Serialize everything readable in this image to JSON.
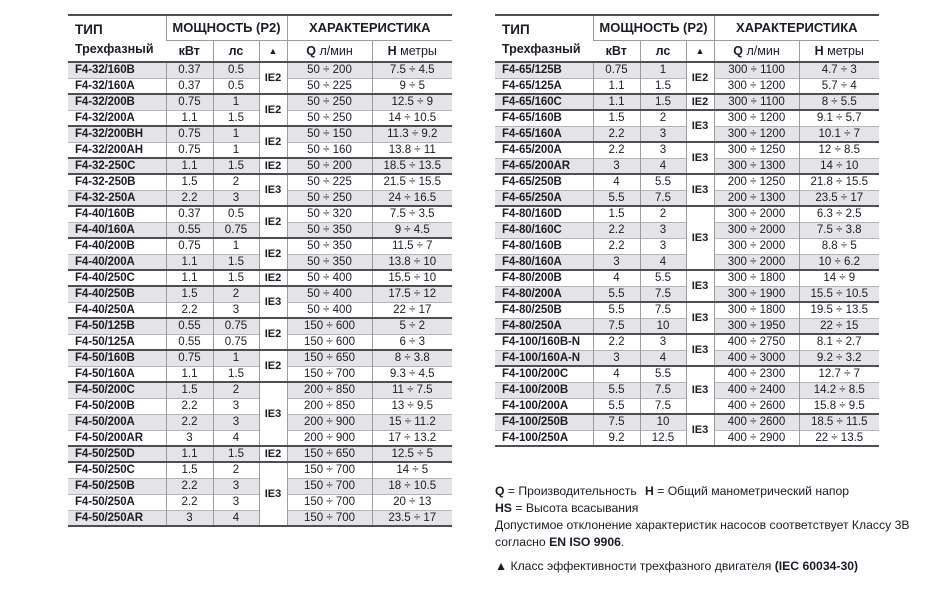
{
  "columns": {
    "type_title": "ТИП",
    "type_subtitle": "Трехфазный",
    "power_title": "МОЩНОСТЬ (P2)",
    "kw": "кВт",
    "hp": "лс",
    "efficiency_symbol": "▲",
    "characteristics_title": "ХАРАКТЕРИСТИКА",
    "q_letter": "Q",
    "q_unit": "л/мин",
    "h_letter": "H",
    "h_unit": "метры"
  },
  "tables": {
    "left": {
      "groups": [
        {
          "ie": "IE2",
          "rows": [
            {
              "model": "F4-32/160B",
              "kw": "0.37",
              "hp": "0.5",
              "q": "50 ÷ 200",
              "h": "7.5 ÷ 4.5"
            },
            {
              "model": "F4-32/160A",
              "kw": "0.37",
              "hp": "0.5",
              "q": "50 ÷ 225",
              "h": "9 ÷ 5"
            }
          ]
        },
        {
          "ie": "IE2",
          "rows": [
            {
              "model": "F4-32/200B",
              "kw": "0.75",
              "hp": "1",
              "q": "50 ÷ 250",
              "h": "12.5 ÷ 9"
            },
            {
              "model": "F4-32/200A",
              "kw": "1.1",
              "hp": "1.5",
              "q": "50 ÷ 250",
              "h": "14 ÷ 10.5"
            }
          ]
        },
        {
          "ie": "IE2",
          "rows": [
            {
              "model": "F4-32/200BH",
              "kw": "0.75",
              "hp": "1",
              "q": "50 ÷ 150",
              "h": "11.3 ÷ 9.2"
            },
            {
              "model": "F4-32/200AH",
              "kw": "0.75",
              "hp": "1",
              "q": "50 ÷ 160",
              "h": "13.8 ÷ 11"
            }
          ]
        },
        {
          "ie": "IE2",
          "rows": [
            {
              "model": "F4-32-250C",
              "kw": "1.1",
              "hp": "1.5",
              "q": "50 ÷ 200",
              "h": "18.5 ÷ 13.5"
            }
          ]
        },
        {
          "ie": "IE3",
          "rows": [
            {
              "model": "F4-32-250B",
              "kw": "1.5",
              "hp": "2",
              "q": "50 ÷ 225",
              "h": "21.5 ÷ 15.5"
            },
            {
              "model": "F4-32-250A",
              "kw": "2.2",
              "hp": "3",
              "q": "50 ÷ 250",
              "h": "24 ÷ 16.5"
            }
          ]
        },
        {
          "ie": "IE2",
          "rows": [
            {
              "model": "F4-40/160B",
              "kw": "0.37",
              "hp": "0.5",
              "q": "50 ÷ 320",
              "h": "7.5 ÷ 3.5"
            },
            {
              "model": "F4-40/160A",
              "kw": "0.55",
              "hp": "0.75",
              "q": "50 ÷ 350",
              "h": "9 ÷ 4.5"
            }
          ]
        },
        {
          "ie": "IE2",
          "rows": [
            {
              "model": "F4-40/200B",
              "kw": "0.75",
              "hp": "1",
              "q": "50 ÷ 350",
              "h": "11.5 ÷ 7"
            },
            {
              "model": "F4-40/200A",
              "kw": "1.1",
              "hp": "1.5",
              "q": "50 ÷ 350",
              "h": "13.8 ÷ 10"
            }
          ]
        },
        {
          "ie": "IE2",
          "rows": [
            {
              "model": "F4-40/250C",
              "kw": "1.1",
              "hp": "1.5",
              "q": "50 ÷ 400",
              "h": "15.5 ÷ 10"
            }
          ]
        },
        {
          "ie": "IE3",
          "rows": [
            {
              "model": "F4-40/250B",
              "kw": "1.5",
              "hp": "2",
              "q": "50 ÷ 400",
              "h": "17.5 ÷ 12"
            },
            {
              "model": "F4-40/250A",
              "kw": "2.2",
              "hp": "3",
              "q": "50 ÷ 400",
              "h": "22 ÷ 17"
            }
          ]
        },
        {
          "ie": "IE2",
          "rows": [
            {
              "model": "F4-50/125B",
              "kw": "0.55",
              "hp": "0.75",
              "q": "150 ÷ 600",
              "h": "5 ÷ 2"
            },
            {
              "model": "F4-50/125A",
              "kw": "0.55",
              "hp": "0.75",
              "q": "150 ÷ 600",
              "h": "6 ÷ 3"
            }
          ]
        },
        {
          "ie": "IE2",
          "rows": [
            {
              "model": "F4-50/160B",
              "kw": "0.75",
              "hp": "1",
              "q": "150 ÷ 650",
              "h": "8 ÷ 3.8"
            },
            {
              "model": "F4-50/160A",
              "kw": "1.1",
              "hp": "1.5",
              "q": "150 ÷ 700",
              "h": "9.3 ÷ 4.5"
            }
          ]
        },
        {
          "ie": "IE3",
          "rows": [
            {
              "model": "F4-50/200C",
              "kw": "1.5",
              "hp": "2",
              "q": "200 ÷ 850",
              "h": "11 ÷ 7.5"
            },
            {
              "model": "F4-50/200B",
              "kw": "2.2",
              "hp": "3",
              "q": "200 ÷ 850",
              "h": "13 ÷ 9.5"
            },
            {
              "model": "F4-50/200A",
              "kw": "2.2",
              "hp": "3",
              "q": "200 ÷ 900",
              "h": "15 ÷ 11.2"
            },
            {
              "model": "F4-50/200AR",
              "kw": "3",
              "hp": "4",
              "q": "200 ÷ 900",
              "h": "17 ÷ 13.2"
            }
          ]
        },
        {
          "ie": "IE2",
          "rows": [
            {
              "model": "F4-50/250D",
              "kw": "1.1",
              "hp": "1.5",
              "q": "150 ÷ 650",
              "h": "12.5 ÷ 5"
            }
          ]
        },
        {
          "ie": "IE3",
          "rows": [
            {
              "model": "F4-50/250C",
              "kw": "1.5",
              "hp": "2",
              "q": "150 ÷ 700",
              "h": "14 ÷ 5"
            },
            {
              "model": "F4-50/250B",
              "kw": "2.2",
              "hp": "3",
              "q": "150 ÷ 700",
              "h": "18 ÷ 10.5"
            },
            {
              "model": "F4-50/250A",
              "kw": "2.2",
              "hp": "3",
              "q": "150 ÷ 700",
              "h": "20 ÷ 13"
            },
            {
              "model": "F4-50/250AR",
              "kw": "3",
              "hp": "4",
              "q": "150 ÷ 700",
              "h": "23.5 ÷ 17"
            }
          ]
        }
      ]
    },
    "right": {
      "groups": [
        {
          "ie": "IE2",
          "rows": [
            {
              "model": "F4-65/125B",
              "kw": "0.75",
              "hp": "1",
              "q": "300 ÷ 1100",
              "h": "4.7 ÷ 3"
            },
            {
              "model": "F4-65/125A",
              "kw": "1.1",
              "hp": "1.5",
              "q": "300 ÷ 1200",
              "h": "5.7 ÷ 4"
            }
          ]
        },
        {
          "ie": "IE2",
          "rows": [
            {
              "model": "F4-65/160C",
              "kw": "1.1",
              "hp": "1.5",
              "q": "300 ÷ 1100",
              "h": "8 ÷ 5.5"
            }
          ]
        },
        {
          "ie": "IE3",
          "rows": [
            {
              "model": "F4-65/160B",
              "kw": "1.5",
              "hp": "2",
              "q": "300 ÷ 1200",
              "h": "9.1 ÷ 5.7"
            },
            {
              "model": "F4-65/160A",
              "kw": "2.2",
              "hp": "3",
              "q": "300 ÷ 1200",
              "h": "10.1 ÷ 7"
            }
          ]
        },
        {
          "ie": "IE3",
          "rows": [
            {
              "model": "F4-65/200A",
              "kw": "2.2",
              "hp": "3",
              "q": "300 ÷ 1250",
              "h": "12 ÷ 8.5"
            },
            {
              "model": "F4-65/200AR",
              "kw": "3",
              "hp": "4",
              "q": "300 ÷ 1300",
              "h": "14 ÷ 10"
            }
          ]
        },
        {
          "ie": "IE3",
          "rows": [
            {
              "model": "F4-65/250B",
              "kw": "4",
              "hp": "5.5",
              "q": "200 ÷ 1250",
              "h": "21.8 ÷ 15.5"
            },
            {
              "model": "F4-65/250A",
              "kw": "5.5",
              "hp": "7.5",
              "q": "200 ÷ 1300",
              "h": "23.5 ÷ 17"
            }
          ]
        },
        {
          "ie": "IE3",
          "rows": [
            {
              "model": "F4-80/160D",
              "kw": "1.5",
              "hp": "2",
              "q": "300 ÷ 2000",
              "h": "6.3 ÷ 2.5"
            },
            {
              "model": "F4-80/160C",
              "kw": "2.2",
              "hp": "3",
              "q": "300 ÷ 2000",
              "h": "7.5 ÷ 3.8"
            },
            {
              "model": "F4-80/160B",
              "kw": "2.2",
              "hp": "3",
              "q": "300 ÷ 2000",
              "h": "8.8 ÷ 5"
            },
            {
              "model": "F4-80/160A",
              "kw": "3",
              "hp": "4",
              "q": "300 ÷ 2000",
              "h": "10 ÷ 6.2"
            }
          ]
        },
        {
          "ie": "IE3",
          "rows": [
            {
              "model": "F4-80/200B",
              "kw": "4",
              "hp": "5.5",
              "q": "300 ÷ 1800",
              "h": "14 ÷ 9"
            },
            {
              "model": "F4-80/200A",
              "kw": "5.5",
              "hp": "7.5",
              "q": "300 ÷ 1900",
              "h": "15.5 ÷ 10.5"
            }
          ]
        },
        {
          "ie": "IE3",
          "rows": [
            {
              "model": "F4-80/250B",
              "kw": "5.5",
              "hp": "7.5",
              "q": "300 ÷ 1800",
              "h": "19.5 ÷ 13.5"
            },
            {
              "model": "F4-80/250A",
              "kw": "7.5",
              "hp": "10",
              "q": "300 ÷ 1950",
              "h": "22 ÷ 15"
            }
          ]
        },
        {
          "ie": "IE3",
          "rows": [
            {
              "model": "F4-100/160B-N",
              "kw": "2.2",
              "hp": "3",
              "q": "400 ÷ 2750",
              "h": "8.1 ÷ 2.7"
            },
            {
              "model": "F4-100/160A-N",
              "kw": "3",
              "hp": "4",
              "q": "400 ÷ 3000",
              "h": "9.2 ÷ 3.2"
            }
          ]
        },
        {
          "ie": "IE3",
          "rows": [
            {
              "model": "F4-100/200C",
              "kw": "4",
              "hp": "5.5",
              "q": "400 ÷ 2300",
              "h": "12.7 ÷ 7"
            },
            {
              "model": "F4-100/200B",
              "kw": "5.5",
              "hp": "7.5",
              "q": "400 ÷ 2400",
              "h": "14.2 ÷ 8.5"
            },
            {
              "model": "F4-100/200A",
              "kw": "5.5",
              "hp": "7.5",
              "q": "400 ÷ 2600",
              "h": "15.8 ÷ 9.5"
            }
          ]
        },
        {
          "ie": "IE3",
          "rows": [
            {
              "model": "F4-100/250B",
              "kw": "7.5",
              "hp": "10",
              "q": "400 ÷ 2600",
              "h": "18.5 ÷ 11.5"
            },
            {
              "model": "F4-100/250A",
              "kw": "9.2",
              "hp": "12.5",
              "q": "400 ÷ 2900",
              "h": "22 ÷ 13.5"
            }
          ]
        }
      ]
    }
  },
  "legend": {
    "q_term": "Q",
    "q_def": " = Производительность",
    "h_term": "H",
    "h_def": " = Общий манометрический напор",
    "hs_term": "HS",
    "hs_def": " = Высота всасывания",
    "tolerance_line1": "Допустимое отклонение характеристик насосов соответствует Классу 3В",
    "tolerance_prefix": "согласно ",
    "tolerance_standard": "EN ISO 9906",
    "tolerance_suffix": ".",
    "marker": "▲",
    "marker_text": " Класс эффективности трехфазного двигателя ",
    "marker_standard": "(IEC 60034-30)"
  },
  "colors": {
    "row_shade": "#e4e4e6",
    "heavy_border": "#4e4e52",
    "light_border": "#b5b5b7",
    "column_border": "#9b9b9f",
    "text": "#1c1c26"
  }
}
